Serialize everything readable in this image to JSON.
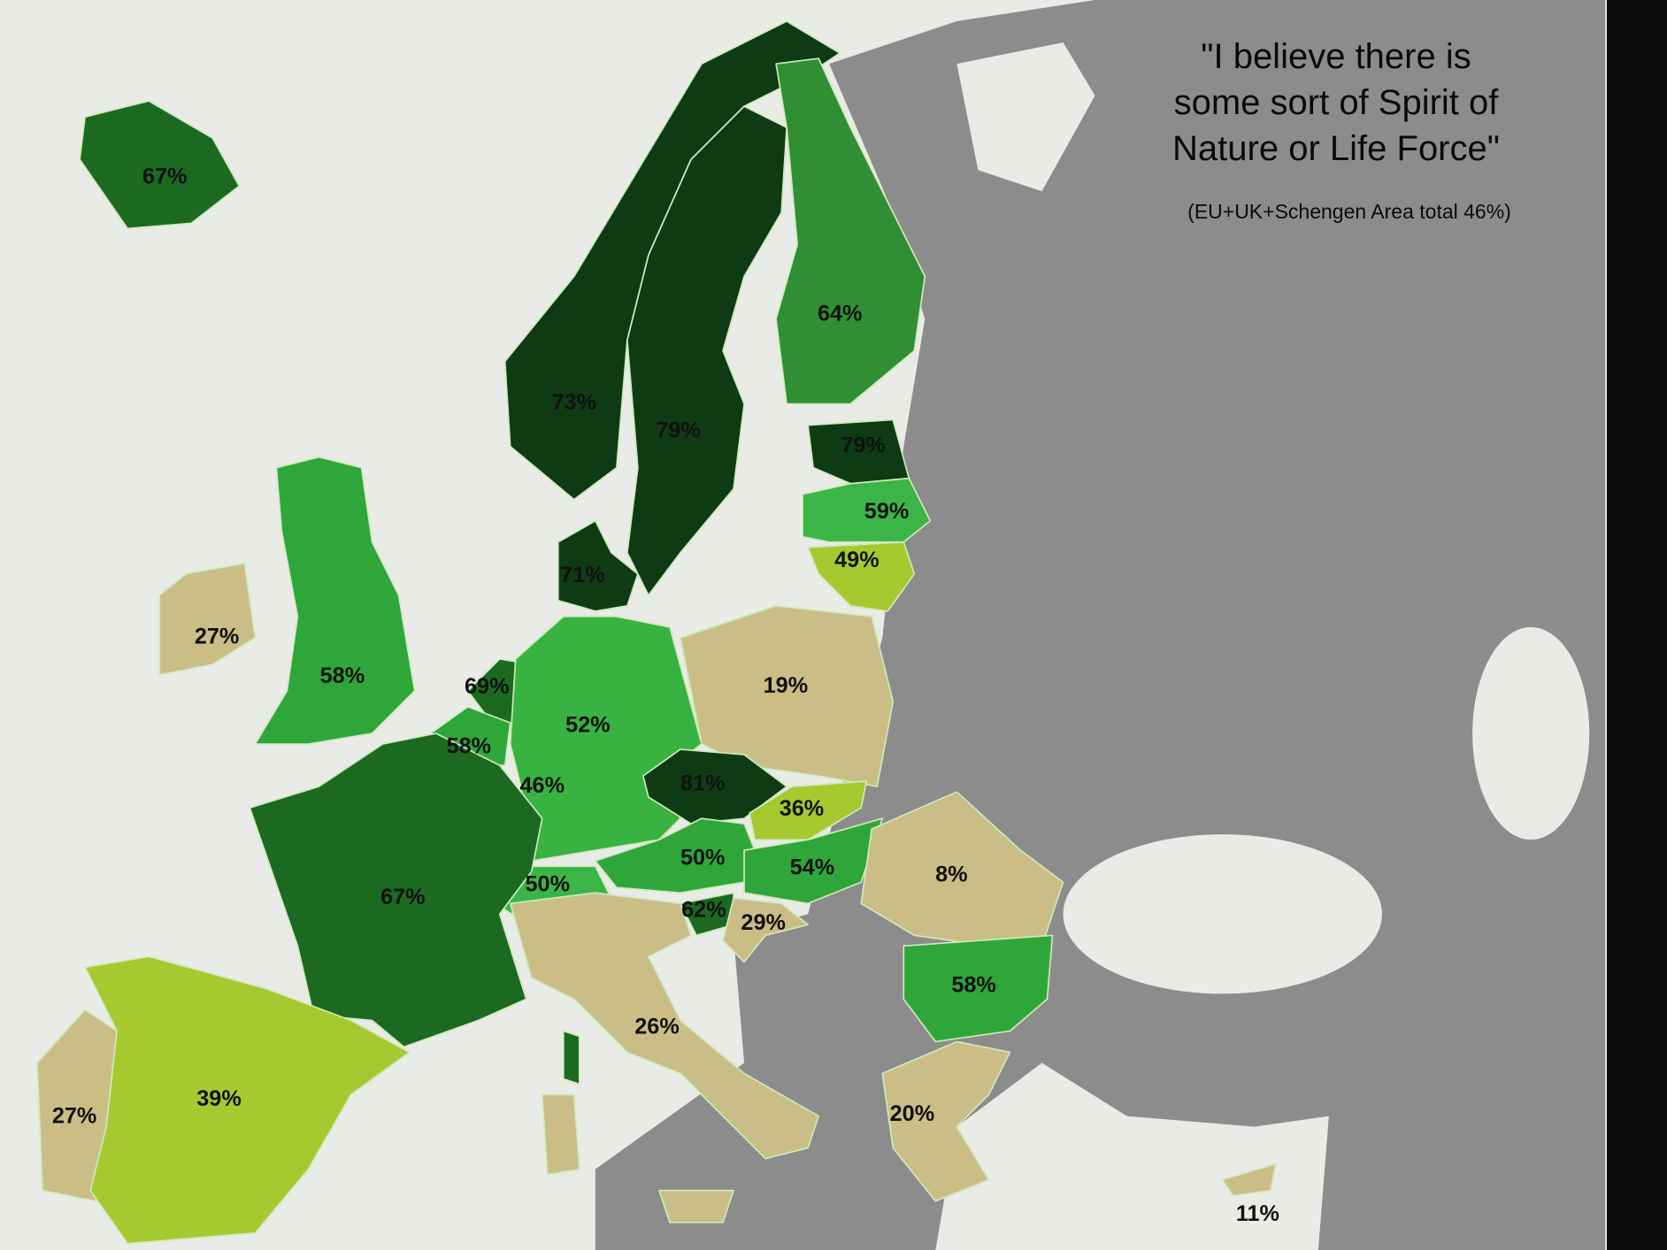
{
  "title": {
    "line1": "\"I believe there is",
    "line2": "some sort of Spirit of",
    "line3": "Nature or Life Force\""
  },
  "subtitle": "(EU+UK+Schengen Area total 46%)",
  "colors": {
    "sea": "#e9ebe7",
    "non_surveyed_land": "#8c8c8c",
    "darkest_green": "#0e3b13",
    "dark_green": "#1c6a22",
    "green": "#2fa63a",
    "light_green": "#3bb547",
    "yellow_green": "#a6c930",
    "tan": "#cbbd86"
  },
  "labels": [
    {
      "text": "67%",
      "fill": "#1c6a22"
    },
    {
      "text": "73%",
      "fill": "#0e3b13"
    },
    {
      "text": "79%",
      "fill": "#0e3b13"
    },
    {
      "text": "64%",
      "fill": "#2f8f32"
    },
    {
      "text": "79%",
      "fill": "#0e3b13"
    },
    {
      "text": "59%",
      "fill": "#3bb547"
    },
    {
      "text": "49%",
      "fill": "#a6c930"
    },
    {
      "text": "71%",
      "fill": "#0e3b13"
    },
    {
      "text": "27%",
      "fill": "#cbbd86"
    },
    {
      "text": "58%",
      "fill": "#2fa63a"
    },
    {
      "text": "69%",
      "fill": "#1c6a22"
    },
    {
      "text": "58%",
      "fill": "#2fa63a"
    },
    {
      "text": "46%",
      "fill": "#a6c930"
    },
    {
      "text": "52%",
      "fill": "#38b240"
    },
    {
      "text": "19%",
      "fill": "#cbbd86"
    },
    {
      "text": "81%",
      "fill": "#0e3b13"
    },
    {
      "text": "36%",
      "fill": "#a6c930"
    },
    {
      "text": "50%",
      "fill": "#2fa63a"
    },
    {
      "text": "54%",
      "fill": "#2fa63a"
    },
    {
      "text": "8%",
      "fill": "#cbbd86"
    },
    {
      "text": "50%",
      "fill": "#3bb547"
    },
    {
      "text": "62%",
      "fill": "#1c6a22"
    },
    {
      "text": "29%",
      "fill": "#cbbd86"
    },
    {
      "text": "67%",
      "fill": "#1c6a22"
    },
    {
      "text": "58%",
      "fill": "#2fa63a"
    },
    {
      "text": "26%",
      "fill": "#cbbd86"
    },
    {
      "text": "27%",
      "fill": "#cbbd86"
    },
    {
      "text": "39%",
      "fill": "#a6c930"
    },
    {
      "text": "20%",
      "fill": "#cbbd86"
    },
    {
      "text": "11%",
      "fill": "#cbbd86"
    }
  ]
}
